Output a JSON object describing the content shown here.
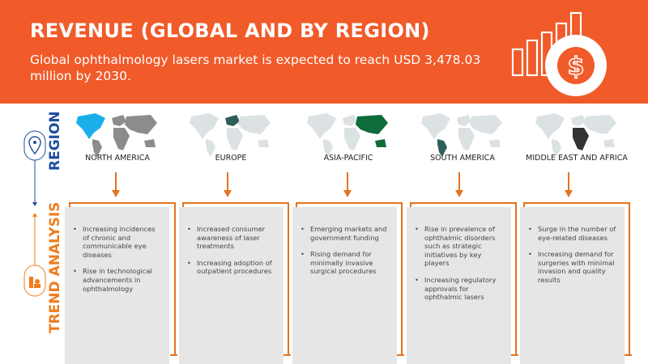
{
  "header": {
    "title": "REVENUE (GLOBAL AND BY REGION)",
    "subtitle": "Global ophthalmology lasers market is expected to reach USD 3,478.03 million by 2030.",
    "icon": "revenue-growth-dollar-icon",
    "background_color": "#F15A29"
  },
  "side": {
    "region_label": "REGION",
    "trend_label": "TREND ANALYSIS",
    "region_icon": "location-pin-icon",
    "trend_icon": "trend-analysis-person-icon",
    "region_color": "#1F4E9E",
    "trend_color": "#EE7D1E"
  },
  "regions": [
    {
      "name": "NORTH AMERICA",
      "highlight_color": "#1AAFEA",
      "bullets": [
        "Increasing incidences of chronic and communicable eye diseases",
        "Rise in technological advancements in ophthalmology"
      ]
    },
    {
      "name": "EUROPE",
      "highlight_color": "#2E5E5A",
      "bullets": [
        "Increased consumer awareness of laser treatments",
        "Increasing adoption of outpatient procedures"
      ]
    },
    {
      "name": "ASIA-PACIFIC",
      "highlight_color": "#0F6B3A",
      "bullets": [
        "Emerging markets and government funding",
        "Rising demand for minimally invasive surgical procedures"
      ]
    },
    {
      "name": "SOUTH AMERICA",
      "highlight_color": "#2F5F5B",
      "bullets": [
        "Rise in prevalence of ophthalmic disorders such as strategic initiatives by key players",
        "Increasing regulatory approvals for ophthalmic lasers"
      ]
    },
    {
      "name": "MIDDLE EAST AND AFRICA",
      "highlight_color": "#333333",
      "bullets": [
        "Surge in the number of eye-related diseases",
        "Increasing demand for surgeries with minimal invasion and quality results"
      ]
    }
  ]
}
